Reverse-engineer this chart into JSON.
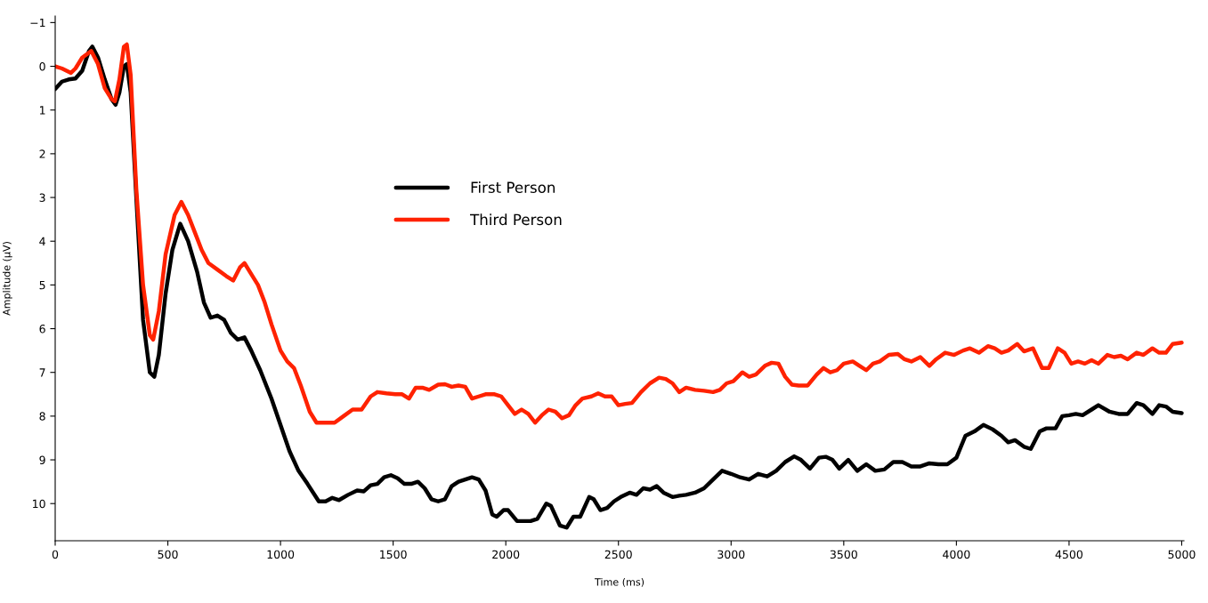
{
  "chart_data": {
    "type": "line",
    "xlabel": "Time (ms)",
    "ylabel": "Amplitude (µV)",
    "xlim": [
      0,
      5010
    ],
    "ylim": [
      10.85,
      -1.15
    ],
    "xticks": [
      0,
      500,
      1000,
      1500,
      2000,
      2500,
      3000,
      3500,
      4000,
      4500,
      5000
    ],
    "yticks": [
      {
        "value": -1,
        "label": "−1"
      },
      0,
      1,
      2,
      3,
      4,
      5,
      6,
      7,
      8,
      9,
      10
    ],
    "grid": false,
    "legend": "top",
    "line_style": "solid",
    "marker": "none",
    "series": [
      {
        "name": "First Person",
        "color": "#000000",
        "x": [
          0,
          30,
          60,
          90,
          120,
          150,
          165,
          190,
          220,
          250,
          268,
          285,
          305,
          318,
          335,
          360,
          390,
          420,
          440,
          460,
          490,
          520,
          555,
          590,
          630,
          660,
          690,
          720,
          750,
          780,
          810,
          840,
          870,
          910,
          960,
          1000,
          1040,
          1080,
          1120,
          1170,
          1200,
          1230,
          1260,
          1300,
          1340,
          1370,
          1400,
          1430,
          1460,
          1490,
          1520,
          1550,
          1580,
          1610,
          1640,
          1670,
          1700,
          1730,
          1760,
          1790,
          1820,
          1850,
          1880,
          1910,
          1940,
          1960,
          1990,
          2010,
          2050,
          2080,
          2110,
          2140,
          2180,
          2200,
          2240,
          2270,
          2300,
          2330,
          2370,
          2390,
          2420,
          2450,
          2480,
          2510,
          2550,
          2580,
          2610,
          2640,
          2670,
          2700,
          2740,
          2770,
          2800,
          2840,
          2880,
          2920,
          2960,
          3000,
          3040,
          3080,
          3120,
          3160,
          3200,
          3240,
          3280,
          3310,
          3350,
          3390,
          3420,
          3450,
          3480,
          3520,
          3560,
          3600,
          3640,
          3680,
          3720,
          3760,
          3800,
          3840,
          3880,
          3920,
          3960,
          4000,
          4040,
          4080,
          4120,
          4160,
          4200,
          4230,
          4260,
          4300,
          4330,
          4370,
          4400,
          4440,
          4470,
          4500,
          4530,
          4560,
          4600,
          4630,
          4680,
          4720,
          4760,
          4800,
          4830,
          4870,
          4900,
          4930,
          4960,
          5000
        ],
        "values": [
          0.52,
          0.35,
          0.3,
          0.28,
          0.1,
          -0.35,
          -0.45,
          -0.2,
          0.3,
          0.75,
          0.88,
          0.6,
          0.0,
          -0.05,
          0.6,
          3.0,
          5.8,
          7.0,
          7.1,
          6.6,
          5.2,
          4.2,
          3.6,
          4.0,
          4.7,
          5.4,
          5.75,
          5.7,
          5.8,
          6.1,
          6.25,
          6.2,
          6.5,
          6.95,
          7.6,
          8.2,
          8.8,
          9.25,
          9.55,
          9.95,
          9.95,
          9.87,
          9.92,
          9.8,
          9.7,
          9.72,
          9.58,
          9.55,
          9.4,
          9.35,
          9.42,
          9.55,
          9.55,
          9.5,
          9.65,
          9.9,
          9.95,
          9.9,
          9.6,
          9.5,
          9.45,
          9.4,
          9.45,
          9.7,
          10.25,
          10.3,
          10.15,
          10.15,
          10.4,
          10.4,
          10.4,
          10.35,
          10.0,
          10.05,
          10.5,
          10.55,
          10.3,
          10.3,
          9.85,
          9.9,
          10.15,
          10.1,
          9.95,
          9.85,
          9.75,
          9.8,
          9.65,
          9.68,
          9.6,
          9.75,
          9.85,
          9.82,
          9.8,
          9.75,
          9.65,
          9.45,
          9.25,
          9.32,
          9.4,
          9.45,
          9.32,
          9.38,
          9.25,
          9.05,
          8.92,
          9.0,
          9.2,
          8.95,
          8.93,
          9.0,
          9.2,
          9.0,
          9.25,
          9.1,
          9.25,
          9.22,
          9.05,
          9.05,
          9.15,
          9.15,
          9.08,
          9.1,
          9.1,
          8.95,
          8.45,
          8.35,
          8.2,
          8.3,
          8.45,
          8.6,
          8.55,
          8.7,
          8.75,
          8.35,
          8.28,
          8.28,
          8.0,
          7.98,
          7.95,
          7.98,
          7.85,
          7.75,
          7.9,
          7.95,
          7.95,
          7.7,
          7.75,
          7.95,
          7.75,
          7.78,
          7.9,
          7.93
        ]
      },
      {
        "name": "Third Person",
        "color": "#ff2200",
        "x": [
          0,
          30,
          50,
          70,
          90,
          120,
          160,
          190,
          220,
          250,
          265,
          285,
          305,
          318,
          335,
          360,
          390,
          420,
          435,
          460,
          490,
          530,
          560,
          590,
          620,
          650,
          680,
          720,
          760,
          790,
          820,
          840,
          870,
          900,
          930,
          960,
          1000,
          1030,
          1060,
          1090,
          1130,
          1160,
          1200,
          1240,
          1280,
          1320,
          1360,
          1400,
          1430,
          1470,
          1510,
          1540,
          1570,
          1600,
          1630,
          1660,
          1700,
          1730,
          1760,
          1790,
          1820,
          1850,
          1880,
          1910,
          1950,
          1980,
          2010,
          2040,
          2070,
          2100,
          2130,
          2160,
          2190,
          2220,
          2250,
          2280,
          2310,
          2340,
          2380,
          2410,
          2440,
          2470,
          2500,
          2530,
          2560,
          2600,
          2640,
          2680,
          2710,
          2740,
          2770,
          2800,
          2840,
          2880,
          2920,
          2950,
          2980,
          3010,
          3050,
          3080,
          3110,
          3150,
          3180,
          3210,
          3240,
          3270,
          3300,
          3340,
          3380,
          3410,
          3440,
          3470,
          3500,
          3540,
          3570,
          3600,
          3630,
          3660,
          3700,
          3740,
          3770,
          3800,
          3840,
          3880,
          3910,
          3950,
          3990,
          4030,
          4060,
          4100,
          4140,
          4170,
          4200,
          4230,
          4270,
          4300,
          4340,
          4380,
          4410,
          4450,
          4480,
          4510,
          4540,
          4570,
          4600,
          4630,
          4670,
          4700,
          4730,
          4760,
          4800,
          4830,
          4870,
          4900,
          4930,
          4960,
          5000
        ],
        "values": [
          0.0,
          0.05,
          0.1,
          0.15,
          0.05,
          -0.2,
          -0.35,
          -0.05,
          0.5,
          0.75,
          0.8,
          0.3,
          -0.45,
          -0.5,
          0.2,
          2.8,
          5.0,
          6.15,
          6.25,
          5.6,
          4.3,
          3.4,
          3.1,
          3.4,
          3.8,
          4.2,
          4.5,
          4.65,
          4.8,
          4.9,
          4.6,
          4.5,
          4.75,
          5.0,
          5.4,
          5.9,
          6.5,
          6.75,
          6.9,
          7.3,
          7.9,
          8.15,
          8.15,
          8.15,
          8.0,
          7.85,
          7.85,
          7.55,
          7.45,
          7.48,
          7.5,
          7.5,
          7.6,
          7.35,
          7.35,
          7.4,
          7.28,
          7.27,
          7.33,
          7.3,
          7.33,
          7.6,
          7.55,
          7.5,
          7.5,
          7.55,
          7.75,
          7.95,
          7.85,
          7.95,
          8.15,
          7.98,
          7.85,
          7.9,
          8.05,
          7.98,
          7.75,
          7.6,
          7.55,
          7.48,
          7.55,
          7.55,
          7.75,
          7.72,
          7.7,
          7.45,
          7.25,
          7.12,
          7.15,
          7.25,
          7.45,
          7.35,
          7.4,
          7.42,
          7.45,
          7.4,
          7.25,
          7.2,
          7.0,
          7.1,
          7.05,
          6.85,
          6.78,
          6.8,
          7.1,
          7.28,
          7.3,
          7.3,
          7.05,
          6.9,
          7.0,
          6.95,
          6.8,
          6.75,
          6.85,
          6.95,
          6.8,
          6.75,
          6.6,
          6.58,
          6.7,
          6.75,
          6.65,
          6.85,
          6.7,
          6.55,
          6.6,
          6.5,
          6.45,
          6.55,
          6.4,
          6.45,
          6.55,
          6.5,
          6.35,
          6.52,
          6.45,
          6.9,
          6.9,
          6.45,
          6.55,
          6.8,
          6.75,
          6.8,
          6.72,
          6.8,
          6.6,
          6.65,
          6.62,
          6.7,
          6.55,
          6.6,
          6.45,
          6.55,
          6.55,
          6.35,
          6.32
        ]
      }
    ]
  }
}
